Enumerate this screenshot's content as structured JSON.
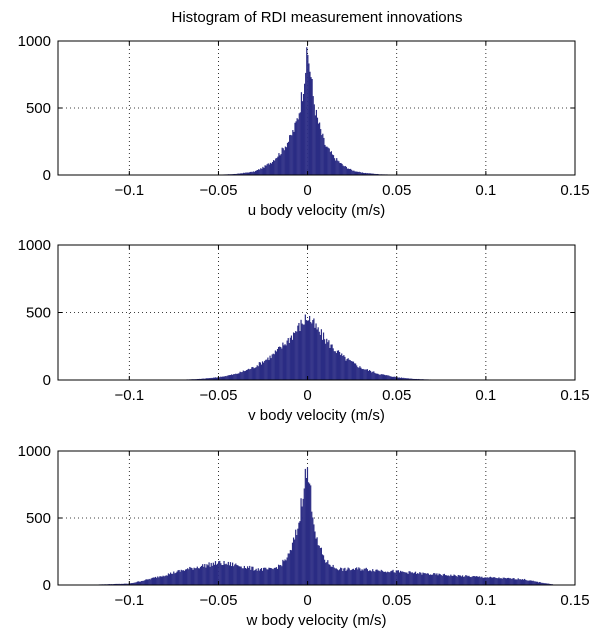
{
  "chart_data": {
    "type": "bar",
    "title": "Histogram of RDI measurement innovations",
    "bar_color": "#2b2c84",
    "grid": "dotted",
    "panels": [
      {
        "xlabel": "u body velocity (m/s)",
        "xlim": [
          -0.14,
          0.15
        ],
        "ylim": [
          0,
          1000
        ],
        "xticks": [
          -0.1,
          -0.05,
          0,
          0.05,
          0.1,
          0.15
        ],
        "xtick_labels": [
          "−0.1",
          "−0.05",
          "0",
          "0.05",
          "0.1",
          "0.15"
        ],
        "yticks": [
          0,
          500,
          1000
        ],
        "ytick_labels": [
          "0",
          "500",
          "1000"
        ],
        "bin_width": 0.0006,
        "x": [
          -0.08,
          -0.05,
          -0.04,
          -0.03,
          -0.025,
          -0.02,
          -0.015,
          -0.01,
          -0.007,
          -0.005,
          -0.003,
          -0.001,
          0,
          0.001,
          0.003,
          0.005,
          0.008,
          0.01,
          0.015,
          0.02,
          0.025,
          0.03,
          0.04,
          0.05,
          0.08
        ],
        "values": [
          0,
          2,
          8,
          25,
          55,
          100,
          170,
          270,
          360,
          460,
          610,
          820,
          890,
          840,
          600,
          440,
          300,
          220,
          130,
          70,
          35,
          18,
          6,
          2,
          0
        ]
      },
      {
        "xlabel": "v body velocity (m/s)",
        "xlim": [
          -0.14,
          0.15
        ],
        "ylim": [
          0,
          1000
        ],
        "xticks": [
          -0.1,
          -0.05,
          0,
          0.05,
          0.1,
          0.15
        ],
        "xtick_labels": [
          "−0.1",
          "−0.05",
          "0",
          "0.05",
          "0.1",
          "0.15"
        ],
        "yticks": [
          0,
          500,
          1000
        ],
        "ytick_labels": [
          "0",
          "500",
          "1000"
        ],
        "bin_width": 0.0006,
        "x": [
          -0.1,
          -0.07,
          -0.06,
          -0.05,
          -0.04,
          -0.03,
          -0.02,
          -0.015,
          -0.01,
          -0.005,
          -0.002,
          0,
          0.002,
          0.005,
          0.01,
          0.015,
          0.02,
          0.03,
          0.04,
          0.05,
          0.06,
          0.07,
          0.1
        ],
        "values": [
          0,
          3,
          8,
          20,
          45,
          95,
          180,
          240,
          310,
          390,
          440,
          470,
          440,
          380,
          300,
          230,
          170,
          90,
          45,
          20,
          8,
          3,
          0
        ]
      },
      {
        "xlabel": "w body velocity (m/s)",
        "xlim": [
          -0.14,
          0.15
        ],
        "ylim": [
          0,
          1000
        ],
        "xticks": [
          -0.1,
          -0.05,
          0,
          0.05,
          0.1,
          0.15
        ],
        "xtick_labels": [
          "−0.1",
          "−0.05",
          "0",
          "0.05",
          "0.1",
          "0.15"
        ],
        "yticks": [
          0,
          500,
          1000
        ],
        "ytick_labels": [
          "0",
          "500",
          "1000"
        ],
        "bin_width": 0.0006,
        "x": [
          -0.13,
          -0.1,
          -0.09,
          -0.08,
          -0.07,
          -0.06,
          -0.05,
          -0.04,
          -0.03,
          -0.02,
          -0.015,
          -0.01,
          -0.005,
          -0.002,
          0,
          0.002,
          0.005,
          0.01,
          0.015,
          0.02,
          0.03,
          0.05,
          0.07,
          0.09,
          0.11,
          0.12,
          0.13,
          0.14
        ],
        "values": [
          0,
          10,
          40,
          75,
          110,
          140,
          165,
          150,
          120,
          115,
          150,
          230,
          450,
          780,
          840,
          650,
          330,
          180,
          130,
          115,
          120,
          100,
          80,
          65,
          50,
          45,
          20,
          0
        ]
      }
    ]
  }
}
